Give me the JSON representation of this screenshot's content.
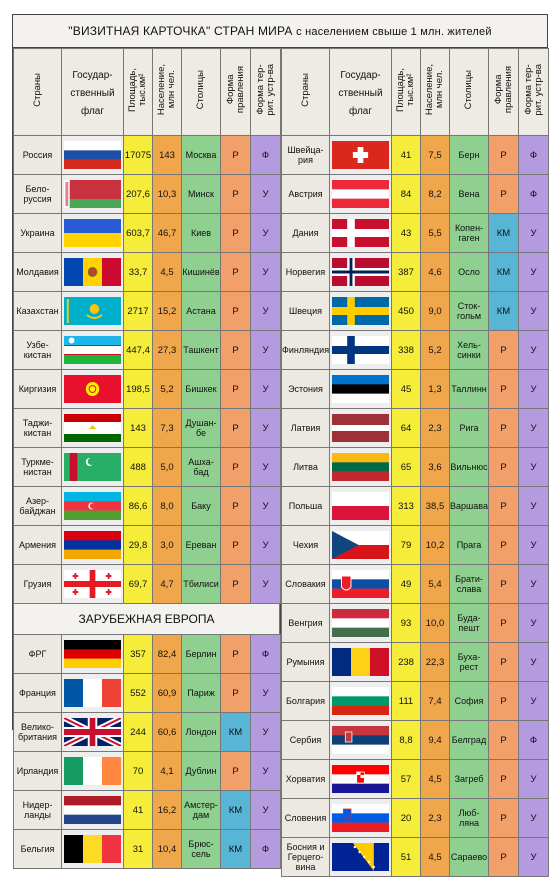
{
  "title_main": "\"ВИЗИТНАЯ КАРТОЧКА\" СТРАН МИРА",
  "title_sub": "с населением свыше 1 млн. жителей",
  "headers": {
    "country": "Страны",
    "flag": "Государ-\nственный\nфлаг",
    "area": "Площадь,\nтыс.км²",
    "pop": "Население,\nмлн чел.",
    "capital": "Столицы",
    "gov": "Форма\nправления",
    "ter": "Форма тер-\nрит. устр-ва"
  },
  "section_europe": "ЗАРУБЕЖНАЯ ЕВРОПА",
  "colors": {
    "area": "#f6ed3a",
    "population": "#f0a64a",
    "capital": "#8fd090",
    "gov_r": "#f2a06a",
    "gov_km": "#58b5d6",
    "territorial": "#b49be0"
  },
  "left_top": [
    {
      "name": "Россия",
      "area": "17075",
      "pop": "143",
      "capital": "Москва",
      "gov": "Р",
      "ter": "Ф",
      "flag": "russia"
    },
    {
      "name": "Бело-\nруссия",
      "area": "207,6",
      "pop": "10,3",
      "capital": "Минск",
      "gov": "Р",
      "ter": "У",
      "flag": "belarus"
    },
    {
      "name": "Украина",
      "area": "603,7",
      "pop": "46,7",
      "capital": "Киев",
      "gov": "Р",
      "ter": "У",
      "flag": "ukraine"
    },
    {
      "name": "Молдавия",
      "area": "33,7",
      "pop": "4,5",
      "capital": "Кишинёв",
      "gov": "Р",
      "ter": "У",
      "flag": "moldova"
    },
    {
      "name": "Казахстан",
      "area": "2717",
      "pop": "15,2",
      "capital": "Астана",
      "gov": "Р",
      "ter": "У",
      "flag": "kazakhstan"
    },
    {
      "name": "Узбе-\nкистан",
      "area": "447,4",
      "pop": "27,3",
      "capital": "Ташкент",
      "gov": "Р",
      "ter": "У",
      "flag": "uzbekistan"
    },
    {
      "name": "Киргизия",
      "area": "198,5",
      "pop": "5,2",
      "capital": "Бишкек",
      "gov": "Р",
      "ter": "У",
      "flag": "kyrgyzstan"
    },
    {
      "name": "Таджи-\nкистан",
      "area": "143",
      "pop": "7,3",
      "capital": "Душан-\nбе",
      "gov": "Р",
      "ter": "У",
      "flag": "tajikistan"
    },
    {
      "name": "Туркме-\nнистан",
      "area": "488",
      "pop": "5,0",
      "capital": "Ашха-\nбад",
      "gov": "Р",
      "ter": "У",
      "flag": "turkmenistan"
    },
    {
      "name": "Азер-\nбайджан",
      "area": "86,6",
      "pop": "8,0",
      "capital": "Баку",
      "gov": "Р",
      "ter": "У",
      "flag": "azerbaijan"
    },
    {
      "name": "Армения",
      "area": "29,8",
      "pop": "3,0",
      "capital": "Ереван",
      "gov": "Р",
      "ter": "У",
      "flag": "armenia"
    },
    {
      "name": "Грузия",
      "area": "69,7",
      "pop": "4,7",
      "capital": "Тбилиси",
      "gov": "Р",
      "ter": "У",
      "flag": "georgia"
    }
  ],
  "left_bottom": [
    {
      "name": "ФРГ",
      "area": "357",
      "pop": "82,4",
      "capital": "Берлин",
      "gov": "Р",
      "ter": "Ф",
      "flag": "germany"
    },
    {
      "name": "Франция",
      "area": "552",
      "pop": "60,9",
      "capital": "Париж",
      "gov": "Р",
      "ter": "У",
      "flag": "france"
    },
    {
      "name": "Велико-\nбритания",
      "area": "244",
      "pop": "60,6",
      "capital": "Лондон",
      "gov": "КМ",
      "ter": "У",
      "flag": "uk"
    },
    {
      "name": "Ирландия",
      "area": "70",
      "pop": "4,1",
      "capital": "Дублин",
      "gov": "Р",
      "ter": "У",
      "flag": "ireland"
    },
    {
      "name": "Нидер-\nланды",
      "area": "41",
      "pop": "16,2",
      "capital": "Амстер-\nдам",
      "gov": "КМ",
      "ter": "У",
      "flag": "netherlands"
    },
    {
      "name": "Бельгия",
      "area": "31",
      "pop": "10,4",
      "capital": "Брюс-\nсель",
      "gov": "КМ",
      "ter": "Ф",
      "flag": "belgium"
    }
  ],
  "right": [
    {
      "name": "Швейца-\nрия",
      "area": "41",
      "pop": "7,5",
      "capital": "Берн",
      "gov": "Р",
      "ter": "Ф",
      "flag": "switzerland"
    },
    {
      "name": "Австрия",
      "area": "84",
      "pop": "8,2",
      "capital": "Вена",
      "gov": "Р",
      "ter": "Ф",
      "flag": "austria"
    },
    {
      "name": "Дания",
      "area": "43",
      "pop": "5,5",
      "capital": "Копен-\nгаген",
      "gov": "КМ",
      "ter": "У",
      "flag": "denmark"
    },
    {
      "name": "Норвегия",
      "area": "387",
      "pop": "4,6",
      "capital": "Осло",
      "gov": "КМ",
      "ter": "У",
      "flag": "norway"
    },
    {
      "name": "Швеция",
      "area": "450",
      "pop": "9,0",
      "capital": "Сток-\nгольм",
      "gov": "КМ",
      "ter": "У",
      "flag": "sweden"
    },
    {
      "name": "Финляндия",
      "area": "338",
      "pop": "5,2",
      "capital": "Хель-\nсинки",
      "gov": "Р",
      "ter": "У",
      "flag": "finland"
    },
    {
      "name": "Эстония",
      "area": "45",
      "pop": "1,3",
      "capital": "Таллинн",
      "gov": "Р",
      "ter": "У",
      "flag": "estonia"
    },
    {
      "name": "Латвия",
      "area": "64",
      "pop": "2,3",
      "capital": "Рига",
      "gov": "Р",
      "ter": "У",
      "flag": "latvia"
    },
    {
      "name": "Литва",
      "area": "65",
      "pop": "3,6",
      "capital": "Вильнюс",
      "gov": "Р",
      "ter": "У",
      "flag": "lithuania"
    },
    {
      "name": "Польша",
      "area": "313",
      "pop": "38,5",
      "capital": "Варшава",
      "gov": "Р",
      "ter": "У",
      "flag": "poland"
    },
    {
      "name": "Чехия",
      "area": "79",
      "pop": "10,2",
      "capital": "Прага",
      "gov": "Р",
      "ter": "У",
      "flag": "czech"
    },
    {
      "name": "Словакия",
      "area": "49",
      "pop": "5,4",
      "capital": "Брати-\nслава",
      "gov": "Р",
      "ter": "У",
      "flag": "slovakia"
    },
    {
      "name": "Венгрия",
      "area": "93",
      "pop": "10,0",
      "capital": "Буда-\nпешт",
      "gov": "Р",
      "ter": "У",
      "flag": "hungary"
    },
    {
      "name": "Румыния",
      "area": "238",
      "pop": "22,3",
      "capital": "Буха-\nрест",
      "gov": "Р",
      "ter": "У",
      "flag": "romania"
    },
    {
      "name": "Болгария",
      "area": "111",
      "pop": "7,4",
      "capital": "София",
      "gov": "Р",
      "ter": "У",
      "flag": "bulgaria"
    },
    {
      "name": "Сербия",
      "area": "8,8",
      "pop": "9,4",
      "capital": "Белград",
      "gov": "Р",
      "ter": "Ф",
      "flag": "serbia"
    },
    {
      "name": "Хорватия",
      "area": "57",
      "pop": "4,5",
      "capital": "Загреб",
      "gov": "Р",
      "ter": "У",
      "flag": "croatia"
    },
    {
      "name": "Словения",
      "area": "20",
      "pop": "2,3",
      "capital": "Люб-\nляна",
      "gov": "Р",
      "ter": "У",
      "flag": "slovenia"
    },
    {
      "name": "Босния и\nГерцего-\nвина",
      "area": "51",
      "pop": "4,5",
      "capital": "Сараево",
      "gov": "Р",
      "ter": "У",
      "flag": "bosnia"
    }
  ]
}
